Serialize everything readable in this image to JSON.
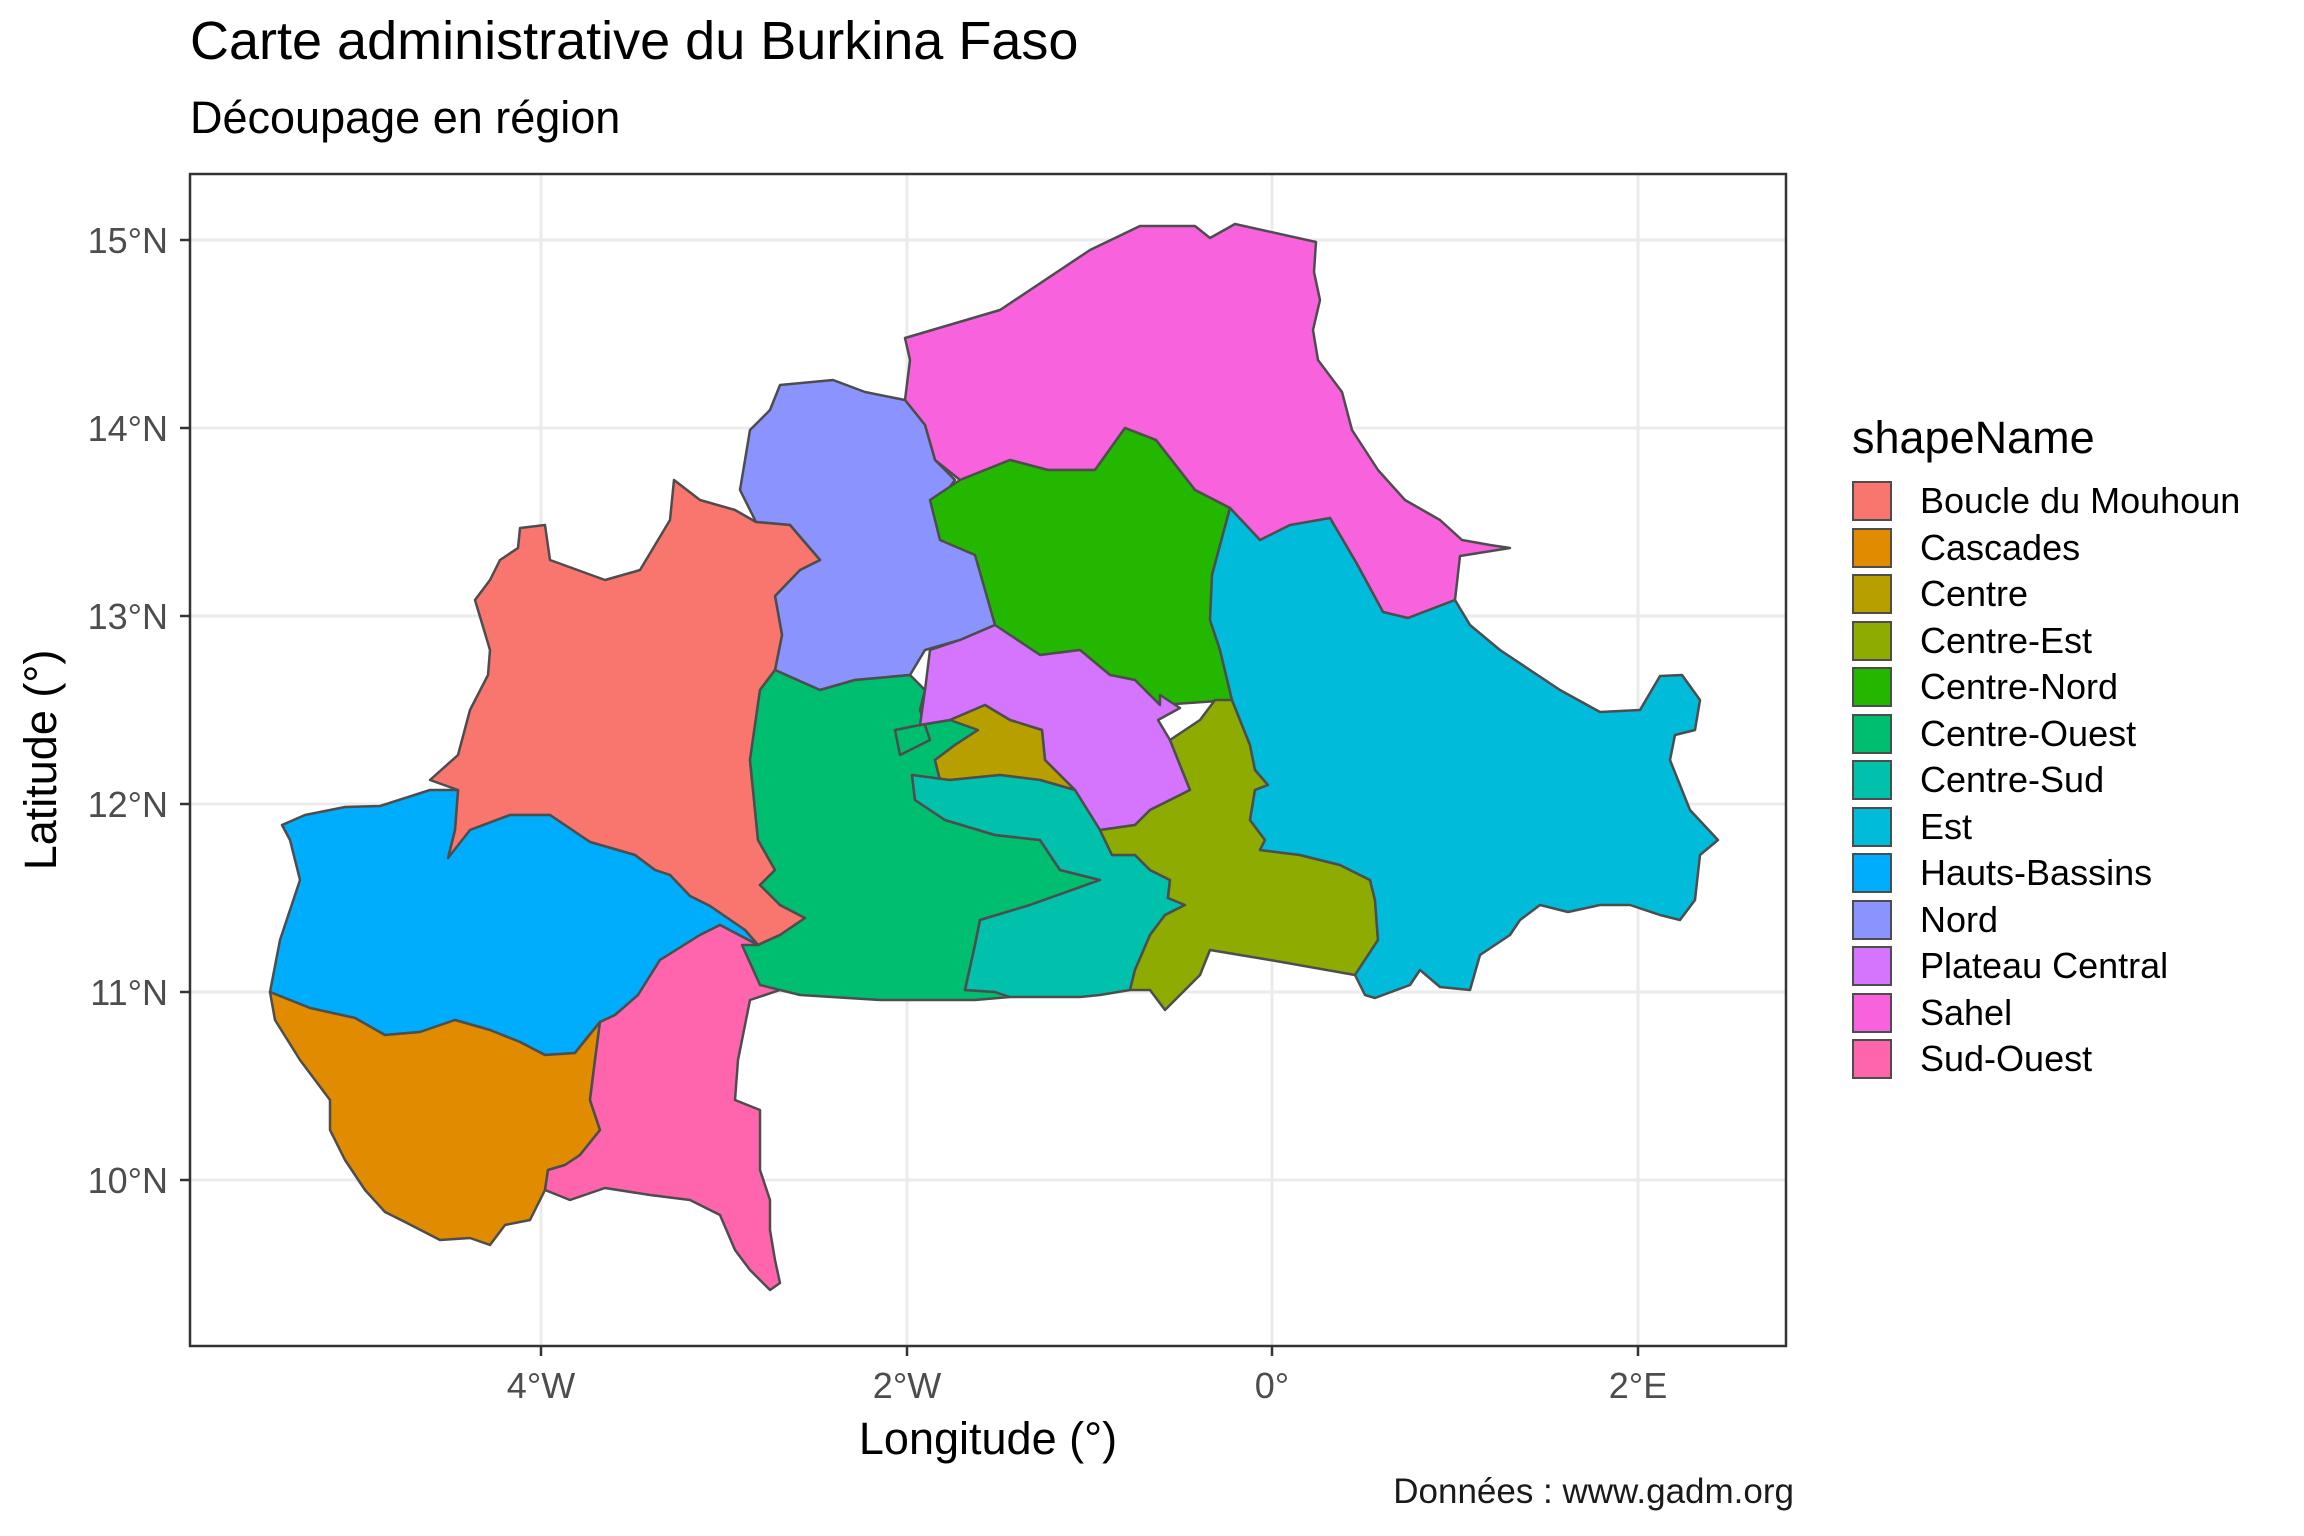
{
  "title": "Carte administrative du Burkina Faso",
  "subtitle": "Découpage en région",
  "caption": "Données : www.gadm.org",
  "chart_data": {
    "type": "choropleth-map",
    "xlabel": "Longitude (°)",
    "ylabel": "Latitude (°)",
    "x_ticks": [
      "4°W",
      "2°W",
      "0°",
      "2°E"
    ],
    "y_ticks": [
      "15°N",
      "14°N",
      "13°N",
      "12°N",
      "11°N",
      "10°N"
    ],
    "legend": {
      "title": "shapeName",
      "position": "right",
      "items": [
        {
          "name": "Boucle du Mouhoun",
          "color": "#F8766D"
        },
        {
          "name": "Cascades",
          "color": "#DE8C00"
        },
        {
          "name": "Centre",
          "color": "#B79F00"
        },
        {
          "name": "Centre-Est",
          "color": "#7CAE00"
        },
        {
          "name": "Centre-Nord",
          "color": "#00BA38"
        },
        {
          "name": "Centre-Ouest",
          "color": "#00C08B"
        },
        {
          "name": "Centre-Sud",
          "color": "#00BFC4"
        },
        {
          "name": "Est",
          "color": "#00B4F0"
        },
        {
          "name": "Hauts-Bassins",
          "color": "#619CFF"
        },
        {
          "name": "Nord",
          "color": "#C77CFF"
        },
        {
          "name": "Plateau Central",
          "color": "#F564E3"
        },
        {
          "name": "Sahel",
          "color": "#FF64B0"
        },
        {
          "name": "Sud-Ouest",
          "color": "#FF6C91"
        }
      ]
    },
    "region_fill_colors": {
      "Boucle du Mouhoun": "#F8766D",
      "Cascades": "#E08B00",
      "Centre": "#B79F00",
      "Centre-Est": "#8DAB00",
      "Centre-Nord": "#24B700",
      "Centre-Ouest": "#00BE70",
      "Centre-Sud": "#00C1AB",
      "Est": "#00BBDA",
      "Hauts-Bassins": "#00ACFC",
      "Nord": "#8B93FF",
      "Plateau Central": "#D575FE",
      "Sahel": "#F962DD",
      "Sud-Ouest": "#FF65AC"
    },
    "grid": true
  }
}
